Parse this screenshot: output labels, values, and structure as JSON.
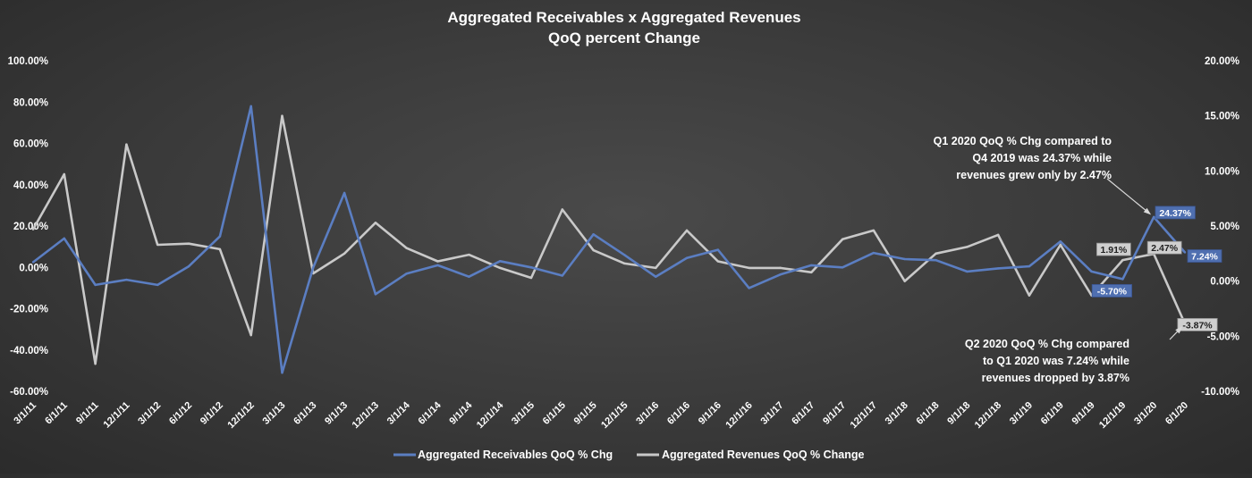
{
  "chart_data": {
    "type": "line",
    "title_lines": [
      "Aggregated Receivables x Aggregated Revenues",
      "QoQ percent Change"
    ],
    "categories": [
      "3/1/11",
      "6/1/11",
      "9/1/11",
      "12/1/11",
      "3/1/12",
      "6/1/12",
      "9/1/12",
      "12/1/12",
      "3/1/13",
      "6/1/13",
      "9/1/13",
      "12/1/13",
      "3/1/14",
      "6/1/14",
      "9/1/14",
      "12/1/14",
      "3/1/15",
      "6/1/15",
      "9/1/15",
      "12/1/15",
      "3/1/16",
      "6/1/16",
      "9/1/16",
      "12/1/16",
      "3/1/17",
      "6/1/17",
      "9/1/17",
      "12/1/17",
      "3/1/18",
      "6/1/18",
      "9/1/18",
      "12/1/18",
      "3/1/19",
      "6/1/19",
      "9/1/19",
      "12/1/19",
      "3/1/20",
      "6/1/20"
    ],
    "y_left": {
      "min": -60,
      "max": 100,
      "step": 20,
      "tick_labels": [
        "-60.00%",
        "-40.00%",
        "-20.00%",
        "0.00%",
        "20.00%",
        "40.00%",
        "60.00%",
        "80.00%",
        "100.00%"
      ]
    },
    "y_right": {
      "min": -10,
      "max": 20,
      "step": 5,
      "tick_labels": [
        "-10.00%",
        "-5.00%",
        "0.00%",
        "5.00%",
        "10.00%",
        "15.00%",
        "20.00%"
      ]
    },
    "series": [
      {
        "name": "Aggregated Receivables QoQ  % Chg",
        "axis": "left",
        "color": "#5b7ec2",
        "values": [
          2.5,
          14,
          -8.5,
          -6,
          -8.5,
          0.5,
          15,
          78,
          -51,
          0,
          36,
          -13,
          -3,
          1,
          -4.5,
          3,
          0,
          -4,
          16,
          6,
          -4.5,
          4.5,
          8.5,
          -10,
          -3.5,
          1,
          0,
          7,
          4,
          3.5,
          -2,
          -0.5,
          0.5,
          12.5,
          -2,
          -5.7,
          24.37,
          7.24
        ]
      },
      {
        "name": "Aggregated Revenues QoQ % Change",
        "axis": "right",
        "color": "#c9c9c9",
        "values": [
          4.7,
          9.7,
          -7.5,
          12.4,
          3.3,
          3.4,
          2.9,
          -4.9,
          15.0,
          0.7,
          2.5,
          5.3,
          3.0,
          1.8,
          2.4,
          1.2,
          0.3,
          6.5,
          2.8,
          1.6,
          1.2,
          4.6,
          1.8,
          1.2,
          1.2,
          0.8,
          3.8,
          4.6,
          0.0,
          2.5,
          3.1,
          4.2,
          -1.3,
          3.3,
          -1.3,
          1.91,
          2.47,
          -3.87
        ]
      }
    ],
    "data_labels": [
      {
        "series": 0,
        "index": 35,
        "text": "-5.70%"
      },
      {
        "series": 0,
        "index": 36,
        "text": "24.37%"
      },
      {
        "series": 0,
        "index": 37,
        "text": "7.24%"
      },
      {
        "series": 1,
        "index": 35,
        "text": "1.91%"
      },
      {
        "series": 1,
        "index": 36,
        "text": "2.47%"
      },
      {
        "series": 1,
        "index": 37,
        "text": "-3.87%"
      }
    ],
    "annotations": [
      {
        "lines": [
          "Q1 2020 QoQ % Chg compared to",
          "Q4 2019 was 24.37% while",
          "revenues grew only by 2.47%"
        ],
        "target_series": 0,
        "target_index": 36
      },
      {
        "lines": [
          "Q2 2020 QoQ % Chg compared",
          "to Q1 2020 was 7.24% while",
          "revenues dropped by 3.87%"
        ],
        "target_series": 1,
        "target_index": 37
      }
    ],
    "legend_position": "bottom",
    "grid": false
  }
}
